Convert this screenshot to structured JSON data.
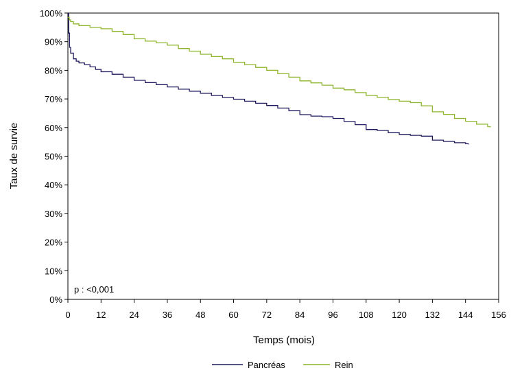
{
  "chart_data": {
    "type": "line",
    "title": "",
    "xlabel": "Temps (mois)",
    "ylabel": "Taux de survie",
    "xlim": [
      0,
      156
    ],
    "ylim": [
      0,
      100
    ],
    "x_ticks": [
      0,
      12,
      24,
      36,
      48,
      60,
      72,
      84,
      96,
      108,
      120,
      132,
      144,
      156
    ],
    "y_ticks": [
      0,
      10,
      20,
      30,
      40,
      50,
      60,
      70,
      80,
      90,
      100
    ],
    "y_tick_labels": [
      "0%",
      "10%",
      "20%",
      "30%",
      "40%",
      "50%",
      "60%",
      "70%",
      "80%",
      "90%",
      "100%"
    ],
    "x_tick_labels": [
      "0",
      "12",
      "24",
      "36",
      "48",
      "60",
      "72",
      "84",
      "96",
      "108",
      "120",
      "132",
      "144",
      "156"
    ],
    "annotation": "p : <0,001",
    "grid": false,
    "legend_position": "bottom-center",
    "series": [
      {
        "name": "Pancréas",
        "color": "#1f1a5e",
        "points": [
          [
            0,
            100
          ],
          [
            0.3,
            93
          ],
          [
            0.6,
            88
          ],
          [
            1,
            86
          ],
          [
            2,
            84
          ],
          [
            3,
            83.2
          ],
          [
            4,
            82.6
          ],
          [
            6,
            82
          ],
          [
            8,
            81.2
          ],
          [
            10,
            80.3
          ],
          [
            12,
            79.5
          ],
          [
            16,
            78.6
          ],
          [
            20,
            77.6
          ],
          [
            24,
            76.5
          ],
          [
            28,
            75.7
          ],
          [
            32,
            75
          ],
          [
            36,
            74.2
          ],
          [
            40,
            73.4
          ],
          [
            44,
            72.7
          ],
          [
            48,
            72
          ],
          [
            52,
            71.2
          ],
          [
            56,
            70.5
          ],
          [
            60,
            69.9
          ],
          [
            64,
            69.2
          ],
          [
            68,
            68.5
          ],
          [
            72,
            67.7
          ],
          [
            76,
            66.8
          ],
          [
            80,
            65.9
          ],
          [
            84,
            64.5
          ],
          [
            88,
            64
          ],
          [
            92,
            63.8
          ],
          [
            96,
            63.2
          ],
          [
            100,
            62.1
          ],
          [
            104,
            61
          ],
          [
            108,
            59.3
          ],
          [
            112,
            59
          ],
          [
            116,
            58.2
          ],
          [
            120,
            57.6
          ],
          [
            124,
            57.3
          ],
          [
            128,
            57
          ],
          [
            132,
            55.6
          ],
          [
            136,
            55.2
          ],
          [
            140,
            54.7
          ],
          [
            144,
            54.4
          ],
          [
            145,
            54.1
          ]
        ]
      },
      {
        "name": "Rein",
        "color": "#8db52e",
        "points": [
          [
            0,
            98.5
          ],
          [
            0.5,
            97.6
          ],
          [
            1,
            97
          ],
          [
            2,
            96.2
          ],
          [
            4,
            95.6
          ],
          [
            8,
            95
          ],
          [
            12,
            94.5
          ],
          [
            16,
            93.6
          ],
          [
            20,
            92.5
          ],
          [
            24,
            91
          ],
          [
            28,
            90.2
          ],
          [
            32,
            89.6
          ],
          [
            36,
            88.8
          ],
          [
            40,
            87.6
          ],
          [
            44,
            86.7
          ],
          [
            48,
            85.6
          ],
          [
            52,
            84.8
          ],
          [
            56,
            84
          ],
          [
            60,
            82.8
          ],
          [
            64,
            82
          ],
          [
            68,
            81
          ],
          [
            72,
            80
          ],
          [
            76,
            78.8
          ],
          [
            80,
            77.6
          ],
          [
            84,
            76.3
          ],
          [
            88,
            75.6
          ],
          [
            92,
            74.8
          ],
          [
            96,
            73.8
          ],
          [
            100,
            73.2
          ],
          [
            104,
            72.2
          ],
          [
            108,
            71.2
          ],
          [
            112,
            70.6
          ],
          [
            116,
            69.8
          ],
          [
            120,
            69.2
          ],
          [
            124,
            68.7
          ],
          [
            128,
            67.6
          ],
          [
            132,
            65.5
          ],
          [
            136,
            64.6
          ],
          [
            140,
            63.2
          ],
          [
            144,
            62.2
          ],
          [
            148,
            61.2
          ],
          [
            152,
            60.3
          ],
          [
            153,
            60.1
          ]
        ]
      }
    ]
  }
}
